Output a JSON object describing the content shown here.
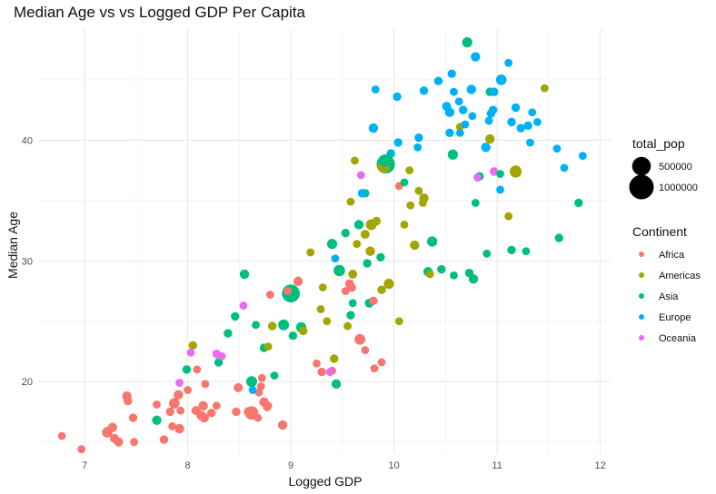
{
  "chart_data": {
    "type": "scatter",
    "title": "Median Age vs vs Logged GDP Per Capita",
    "xlabel": "Logged GDP",
    "ylabel": "Median Age",
    "xlim": [
      6.55,
      12.1
    ],
    "ylim": [
      14.0,
      49.2
    ],
    "xticks": [
      7,
      8,
      9,
      10,
      11,
      12
    ],
    "yticks": [
      20,
      30,
      40
    ],
    "grid": true,
    "legend_placement": "right",
    "size_legend": {
      "title": "total_pop",
      "entries": [
        {
          "label": "500000",
          "value": 500000
        },
        {
          "label": "1000000",
          "value": 1000000
        }
      ]
    },
    "color_legend": {
      "title": "Continent",
      "entries": [
        {
          "label": "Africa",
          "color": "#F8766D"
        },
        {
          "label": "Americas",
          "color": "#A3A500"
        },
        {
          "label": "Asia",
          "color": "#00BF7D"
        },
        {
          "label": "Europe",
          "color": "#00B0F6"
        },
        {
          "label": "Oceania",
          "color": "#E76BF3"
        }
      ]
    },
    "series": [
      {
        "name": "Africa",
        "color": "#F8766D",
        "points": [
          {
            "x": 6.78,
            "y": 15.5,
            "pop": 30000
          },
          {
            "x": 6.97,
            "y": 14.4,
            "pop": 30000
          },
          {
            "x": 7.22,
            "y": 15.8,
            "pop": 90000
          },
          {
            "x": 7.27,
            "y": 16.2,
            "pop": 60000
          },
          {
            "x": 7.29,
            "y": 15.3,
            "pop": 50000
          },
          {
            "x": 7.33,
            "y": 15.0,
            "pop": 50000
          },
          {
            "x": 7.41,
            "y": 18.8,
            "pop": 60000
          },
          {
            "x": 7.42,
            "y": 18.4,
            "pop": 40000
          },
          {
            "x": 7.47,
            "y": 17.0,
            "pop": 40000
          },
          {
            "x": 7.48,
            "y": 15.0,
            "pop": 30000
          },
          {
            "x": 7.7,
            "y": 18.1,
            "pop": 30000
          },
          {
            "x": 7.77,
            "y": 15.2,
            "pop": 40000
          },
          {
            "x": 7.83,
            "y": 17.5,
            "pop": 40000
          },
          {
            "x": 7.85,
            "y": 16.3,
            "pop": 30000
          },
          {
            "x": 7.87,
            "y": 18.2,
            "pop": 90000
          },
          {
            "x": 7.91,
            "y": 18.9,
            "pop": 60000
          },
          {
            "x": 7.92,
            "y": 16.1,
            "pop": 60000
          },
          {
            "x": 7.93,
            "y": 17.6,
            "pop": 30000
          },
          {
            "x": 8.0,
            "y": 19.3,
            "pop": 30000
          },
          {
            "x": 8.08,
            "y": 17.6,
            "pop": 50000
          },
          {
            "x": 8.09,
            "y": 21.0,
            "pop": 30000
          },
          {
            "x": 8.13,
            "y": 17.2,
            "pop": 60000
          },
          {
            "x": 8.15,
            "y": 18.0,
            "pop": 60000
          },
          {
            "x": 8.16,
            "y": 17.0,
            "pop": 60000
          },
          {
            "x": 8.17,
            "y": 19.8,
            "pop": 30000
          },
          {
            "x": 8.23,
            "y": 17.4,
            "pop": 40000
          },
          {
            "x": 8.28,
            "y": 18.0,
            "pop": 30000
          },
          {
            "x": 8.47,
            "y": 17.5,
            "pop": 40000
          },
          {
            "x": 8.49,
            "y": 19.5,
            "pop": 50000
          },
          {
            "x": 8.59,
            "y": 17.5,
            "pop": 60000
          },
          {
            "x": 8.62,
            "y": 17.4,
            "pop": 200000
          },
          {
            "x": 8.68,
            "y": 17.0,
            "pop": 30000
          },
          {
            "x": 8.69,
            "y": 19.1,
            "pop": 30000
          },
          {
            "x": 8.71,
            "y": 19.6,
            "pop": 30000
          },
          {
            "x": 8.72,
            "y": 20.3,
            "pop": 30000
          },
          {
            "x": 8.74,
            "y": 18.3,
            "pop": 60000
          },
          {
            "x": 8.77,
            "y": 17.9,
            "pop": 40000
          },
          {
            "x": 8.78,
            "y": 18.0,
            "pop": 30000
          },
          {
            "x": 8.8,
            "y": 27.2,
            "pop": 30000
          },
          {
            "x": 8.92,
            "y": 16.4,
            "pop": 60000
          },
          {
            "x": 8.97,
            "y": 27.5,
            "pop": 30000
          },
          {
            "x": 9.07,
            "y": 28.3,
            "pop": 60000
          },
          {
            "x": 9.25,
            "y": 21.5,
            "pop": 30000
          },
          {
            "x": 9.3,
            "y": 20.8,
            "pop": 40000
          },
          {
            "x": 9.4,
            "y": 20.9,
            "pop": 30000
          },
          {
            "x": 9.53,
            "y": 27.5,
            "pop": 30000
          },
          {
            "x": 9.57,
            "y": 28.1,
            "pop": 50000
          },
          {
            "x": 9.59,
            "y": 27.8,
            "pop": 40000
          },
          {
            "x": 9.67,
            "y": 23.5,
            "pop": 100000
          },
          {
            "x": 9.72,
            "y": 22.6,
            "pop": 30000
          },
          {
            "x": 9.8,
            "y": 26.7,
            "pop": 40000
          },
          {
            "x": 9.81,
            "y": 21.1,
            "pop": 30000
          },
          {
            "x": 9.88,
            "y": 21.6,
            "pop": 30000
          },
          {
            "x": 10.05,
            "y": 36.2,
            "pop": 30000
          }
        ]
      },
      {
        "name": "Americas",
        "color": "#A3A500",
        "points": [
          {
            "x": 8.05,
            "y": 23.0,
            "pop": 40000
          },
          {
            "x": 8.78,
            "y": 22.9,
            "pop": 30000
          },
          {
            "x": 8.82,
            "y": 24.6,
            "pop": 40000
          },
          {
            "x": 9.12,
            "y": 24.2,
            "pop": 40000
          },
          {
            "x": 9.19,
            "y": 30.7,
            "pop": 30000
          },
          {
            "x": 9.29,
            "y": 26.0,
            "pop": 30000
          },
          {
            "x": 9.31,
            "y": 27.8,
            "pop": 30000
          },
          {
            "x": 9.35,
            "y": 25.0,
            "pop": 30000
          },
          {
            "x": 9.42,
            "y": 21.9,
            "pop": 40000
          },
          {
            "x": 9.55,
            "y": 24.6,
            "pop": 30000
          },
          {
            "x": 9.58,
            "y": 34.9,
            "pop": 30000
          },
          {
            "x": 9.6,
            "y": 28.9,
            "pop": 50000
          },
          {
            "x": 9.62,
            "y": 38.3,
            "pop": 30000
          },
          {
            "x": 9.64,
            "y": 31.4,
            "pop": 30000
          },
          {
            "x": 9.72,
            "y": 32.2,
            "pop": 50000
          },
          {
            "x": 9.77,
            "y": 30.8,
            "pop": 60000
          },
          {
            "x": 9.78,
            "y": 33.0,
            "pop": 100000
          },
          {
            "x": 9.83,
            "y": 33.3,
            "pop": 40000
          },
          {
            "x": 9.88,
            "y": 27.6,
            "pop": 40000
          },
          {
            "x": 9.9,
            "y": 37.8,
            "pop": 150000
          },
          {
            "x": 9.95,
            "y": 28.1,
            "pop": 80000
          },
          {
            "x": 10.05,
            "y": 25.0,
            "pop": 30000
          },
          {
            "x": 10.1,
            "y": 33.0,
            "pop": 30000
          },
          {
            "x": 10.15,
            "y": 37.5,
            "pop": 30000
          },
          {
            "x": 10.16,
            "y": 34.6,
            "pop": 30000
          },
          {
            "x": 10.2,
            "y": 31.3,
            "pop": 60000
          },
          {
            "x": 10.24,
            "y": 35.8,
            "pop": 30000
          },
          {
            "x": 10.28,
            "y": 34.8,
            "pop": 30000
          },
          {
            "x": 10.29,
            "y": 35.2,
            "pop": 60000
          },
          {
            "x": 10.35,
            "y": 28.9,
            "pop": 30000
          },
          {
            "x": 10.64,
            "y": 41.1,
            "pop": 30000
          },
          {
            "x": 10.93,
            "y": 40.1,
            "pop": 60000
          },
          {
            "x": 11.11,
            "y": 33.7,
            "pop": 30000
          },
          {
            "x": 11.18,
            "y": 37.4,
            "pop": 140000
          },
          {
            "x": 11.46,
            "y": 44.3,
            "pop": 30000
          }
        ]
      },
      {
        "name": "Asia",
        "color": "#00BF7D",
        "points": [
          {
            "x": 7.7,
            "y": 16.8,
            "pop": 60000
          },
          {
            "x": 7.99,
            "y": 21.0,
            "pop": 40000
          },
          {
            "x": 8.3,
            "y": 21.6,
            "pop": 40000
          },
          {
            "x": 8.39,
            "y": 24.0,
            "pop": 40000
          },
          {
            "x": 8.46,
            "y": 25.4,
            "pop": 40000
          },
          {
            "x": 8.55,
            "y": 28.9,
            "pop": 60000
          },
          {
            "x": 8.62,
            "y": 20.0,
            "pop": 100000
          },
          {
            "x": 8.66,
            "y": 24.7,
            "pop": 30000
          },
          {
            "x": 8.74,
            "y": 22.8,
            "pop": 40000
          },
          {
            "x": 8.84,
            "y": 20.5,
            "pop": 30000
          },
          {
            "x": 8.93,
            "y": 24.7,
            "pop": 100000
          },
          {
            "x": 9.0,
            "y": 27.3,
            "pop": 450000
          },
          {
            "x": 9.02,
            "y": 23.8,
            "pop": 40000
          },
          {
            "x": 9.1,
            "y": 24.5,
            "pop": 80000
          },
          {
            "x": 9.4,
            "y": 31.4,
            "pop": 80000
          },
          {
            "x": 9.44,
            "y": 19.8,
            "pop": 60000
          },
          {
            "x": 9.47,
            "y": 29.2,
            "pop": 120000
          },
          {
            "x": 9.53,
            "y": 32.3,
            "pop": 40000
          },
          {
            "x": 9.58,
            "y": 25.5,
            "pop": 40000
          },
          {
            "x": 9.6,
            "y": 26.5,
            "pop": 30000
          },
          {
            "x": 9.66,
            "y": 33.0,
            "pop": 60000
          },
          {
            "x": 9.72,
            "y": 35.6,
            "pop": 40000
          },
          {
            "x": 9.74,
            "y": 29.8,
            "pop": 40000
          },
          {
            "x": 9.76,
            "y": 26.5,
            "pop": 50000
          },
          {
            "x": 9.87,
            "y": 30.3,
            "pop": 40000
          },
          {
            "x": 9.91,
            "y": 38.3,
            "pop": 150000
          },
          {
            "x": 9.92,
            "y": 38.0,
            "pop": 480000
          },
          {
            "x": 9.95,
            "y": 38.6,
            "pop": 30000
          },
          {
            "x": 10.1,
            "y": 36.5,
            "pop": 30000
          },
          {
            "x": 10.33,
            "y": 29.1,
            "pop": 60000
          },
          {
            "x": 10.37,
            "y": 31.6,
            "pop": 80000
          },
          {
            "x": 10.46,
            "y": 29.3,
            "pop": 40000
          },
          {
            "x": 10.57,
            "y": 38.8,
            "pop": 80000
          },
          {
            "x": 10.58,
            "y": 28.8,
            "pop": 30000
          },
          {
            "x": 10.71,
            "y": 48.1,
            "pop": 80000
          },
          {
            "x": 10.73,
            "y": 29.0,
            "pop": 40000
          },
          {
            "x": 10.77,
            "y": 28.5,
            "pop": 60000
          },
          {
            "x": 10.79,
            "y": 34.8,
            "pop": 30000
          },
          {
            "x": 10.83,
            "y": 37.0,
            "pop": 40000
          },
          {
            "x": 10.9,
            "y": 30.6,
            "pop": 30000
          },
          {
            "x": 10.93,
            "y": 44.0,
            "pop": 40000
          },
          {
            "x": 11.03,
            "y": 37.2,
            "pop": 30000
          },
          {
            "x": 11.14,
            "y": 30.9,
            "pop": 40000
          },
          {
            "x": 11.28,
            "y": 30.8,
            "pop": 30000
          },
          {
            "x": 11.6,
            "y": 31.9,
            "pop": 40000
          },
          {
            "x": 11.79,
            "y": 34.8,
            "pop": 40000
          }
        ]
      },
      {
        "name": "Europe",
        "color": "#00B0F6",
        "points": [
          {
            "x": 8.63,
            "y": 19.3,
            "pop": 30000
          },
          {
            "x": 9.43,
            "y": 30.2,
            "pop": 30000
          },
          {
            "x": 9.69,
            "y": 35.6,
            "pop": 40000
          },
          {
            "x": 9.8,
            "y": 41.0,
            "pop": 60000
          },
          {
            "x": 9.82,
            "y": 44.2,
            "pop": 30000
          },
          {
            "x": 9.97,
            "y": 38.9,
            "pop": 40000
          },
          {
            "x": 10.03,
            "y": 43.6,
            "pop": 40000
          },
          {
            "x": 10.04,
            "y": 39.8,
            "pop": 40000
          },
          {
            "x": 10.23,
            "y": 39.4,
            "pop": 30000
          },
          {
            "x": 10.24,
            "y": 40.2,
            "pop": 40000
          },
          {
            "x": 10.29,
            "y": 44.1,
            "pop": 40000
          },
          {
            "x": 10.43,
            "y": 44.9,
            "pop": 40000
          },
          {
            "x": 10.51,
            "y": 42.8,
            "pop": 50000
          },
          {
            "x": 10.54,
            "y": 40.6,
            "pop": 40000
          },
          {
            "x": 10.54,
            "y": 42.3,
            "pop": 60000
          },
          {
            "x": 10.56,
            "y": 45.5,
            "pop": 40000
          },
          {
            "x": 10.58,
            "y": 44.0,
            "pop": 30000
          },
          {
            "x": 10.63,
            "y": 43.2,
            "pop": 30000
          },
          {
            "x": 10.64,
            "y": 40.6,
            "pop": 30000
          },
          {
            "x": 10.67,
            "y": 42.5,
            "pop": 40000
          },
          {
            "x": 10.69,
            "y": 41.3,
            "pop": 30000
          },
          {
            "x": 10.75,
            "y": 44.2,
            "pop": 60000
          },
          {
            "x": 10.76,
            "y": 42.0,
            "pop": 30000
          },
          {
            "x": 10.79,
            "y": 46.9,
            "pop": 60000
          },
          {
            "x": 10.81,
            "y": 36.9,
            "pop": 30000
          },
          {
            "x": 10.89,
            "y": 39.4,
            "pop": 60000
          },
          {
            "x": 10.92,
            "y": 41.6,
            "pop": 30000
          },
          {
            "x": 10.94,
            "y": 42.2,
            "pop": 40000
          },
          {
            "x": 10.96,
            "y": 42.5,
            "pop": 40000
          },
          {
            "x": 10.97,
            "y": 44.0,
            "pop": 40000
          },
          {
            "x": 11.03,
            "y": 35.9,
            "pop": 30000
          },
          {
            "x": 11.04,
            "y": 45.0,
            "pop": 90000
          },
          {
            "x": 11.11,
            "y": 46.4,
            "pop": 30000
          },
          {
            "x": 11.14,
            "y": 41.5,
            "pop": 40000
          },
          {
            "x": 11.18,
            "y": 42.7,
            "pop": 40000
          },
          {
            "x": 11.23,
            "y": 41.0,
            "pop": 40000
          },
          {
            "x": 11.3,
            "y": 41.2,
            "pop": 40000
          },
          {
            "x": 11.32,
            "y": 39.8,
            "pop": 30000
          },
          {
            "x": 11.34,
            "y": 42.3,
            "pop": 30000
          },
          {
            "x": 11.39,
            "y": 41.5,
            "pop": 30000
          },
          {
            "x": 11.58,
            "y": 39.3,
            "pop": 30000
          },
          {
            "x": 11.65,
            "y": 37.7,
            "pop": 30000
          },
          {
            "x": 11.83,
            "y": 38.7,
            "pop": 30000
          }
        ]
      },
      {
        "name": "Oceania",
        "color": "#E76BF3",
        "points": [
          {
            "x": 7.92,
            "y": 19.9,
            "pop": 30000
          },
          {
            "x": 8.03,
            "y": 22.4,
            "pop": 30000
          },
          {
            "x": 8.28,
            "y": 22.3,
            "pop": 40000
          },
          {
            "x": 8.33,
            "y": 22.1,
            "pop": 30000
          },
          {
            "x": 8.54,
            "y": 26.3,
            "pop": 30000
          },
          {
            "x": 9.38,
            "y": 20.8,
            "pop": 30000
          },
          {
            "x": 9.68,
            "y": 37.1,
            "pop": 30000
          },
          {
            "x": 10.81,
            "y": 36.9,
            "pop": 30000
          },
          {
            "x": 10.97,
            "y": 37.4,
            "pop": 40000
          }
        ]
      }
    ]
  }
}
